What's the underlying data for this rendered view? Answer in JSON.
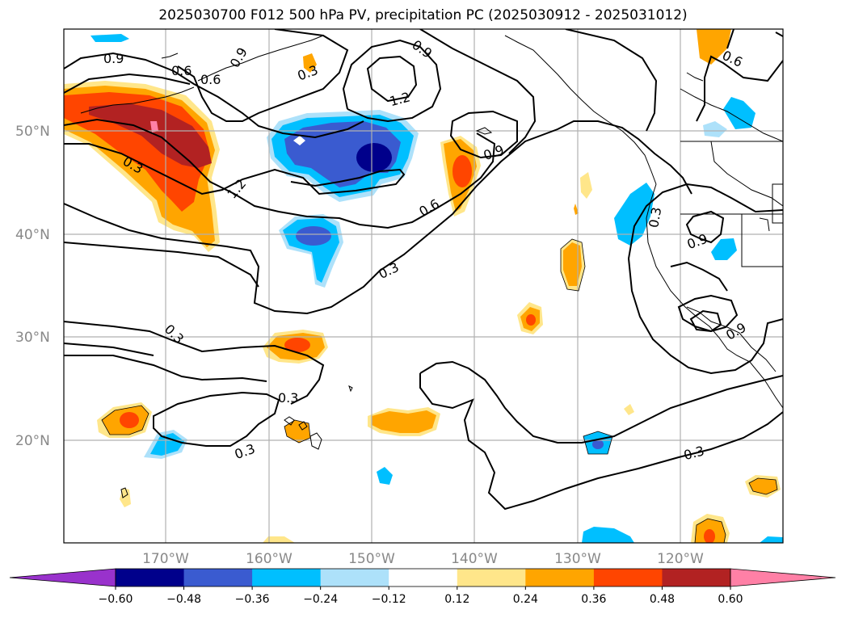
{
  "title": "2025030700 F012 500 hPa PV, precipitation PC (2025030912 - 2025031012)",
  "lat_labels": [
    "50°N",
    "40°N",
    "30°N",
    "20°N"
  ],
  "lon_labels": [
    "170°W",
    "160°W",
    "150°W",
    "140°W",
    "130°W",
    "120°W"
  ],
  "contour_labels": [
    "0.9",
    "0.6",
    "0.6",
    "0.9",
    "0.3",
    "0.9",
    "1.2",
    "0.3",
    "1.2",
    "0.9",
    "0.6",
    "0.3",
    "0.3",
    "0.3",
    "0.3",
    "0.3",
    "0.9",
    "0.3",
    "0.9",
    "0.6"
  ],
  "colorbar": {
    "ticks": [
      "−0.60",
      "−0.48",
      "−0.36",
      "−0.24",
      "−0.12",
      "0.12",
      "0.24",
      "0.36",
      "0.48",
      "0.60"
    ],
    "colors": {
      "under": "#9932CC",
      "levels": [
        "#00008B",
        "#3A5BD0",
        "#00BFFF",
        "#ADE1FA",
        "#FFFFFF",
        "#FFE68A",
        "#FFA500",
        "#FF4500",
        "#B22222"
      ],
      "over": "#FF80A6"
    }
  },
  "map": {
    "lon_range": [
      "180°W",
      "110°W"
    ],
    "lat_range": [
      "10°N",
      "60°N"
    ],
    "gridlines": true
  }
}
